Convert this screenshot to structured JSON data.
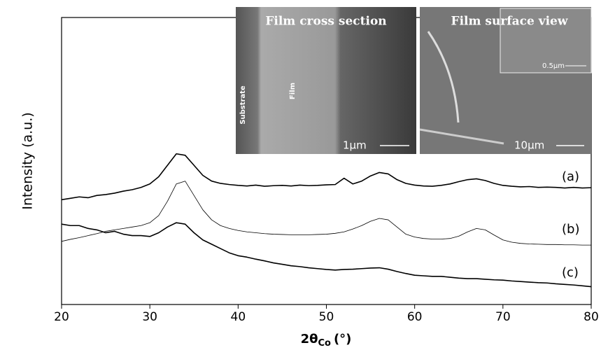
{
  "chart_data": {
    "type": "line",
    "xlabel": {
      "main": "2θ",
      "sub": "Co",
      "unit": "(°)"
    },
    "ylabel": "Intensity (a.u.)",
    "x": [
      20,
      21,
      22,
      23,
      24,
      25,
      26,
      27,
      28,
      29,
      30,
      31,
      32,
      33,
      34,
      35,
      36,
      37,
      38,
      39,
      40,
      41,
      42,
      43,
      44,
      45,
      46,
      47,
      48,
      49,
      50,
      51,
      52,
      53,
      54,
      55,
      56,
      57,
      58,
      59,
      60,
      61,
      62,
      63,
      64,
      65,
      66,
      67,
      68,
      69,
      70,
      71,
      72,
      73,
      74,
      75,
      76,
      77,
      78,
      79,
      80
    ],
    "series": [
      {
        "name": "(a)",
        "color": "#000000",
        "values": [
          36.5,
          37,
          37.5,
          37.2,
          38,
          38.3,
          38.8,
          39.5,
          40,
          40.8,
          42,
          44.5,
          48.5,
          52.5,
          52,
          48.5,
          45,
          43,
          42.2,
          41.8,
          41.5,
          41.3,
          41.6,
          41.2,
          41.4,
          41.5,
          41.3,
          41.6,
          41.4,
          41.5,
          41.7,
          41.8,
          44,
          42,
          43,
          44.8,
          46,
          45.5,
          43.5,
          42.2,
          41.6,
          41.3,
          41.2,
          41.5,
          42,
          42.8,
          43.5,
          43.8,
          43.2,
          42.2,
          41.5,
          41.2,
          41,
          41.1,
          40.8,
          40.9,
          40.8,
          40.6,
          40.8,
          40.6,
          40.7
        ]
      },
      {
        "name": "(b)",
        "color": "#000000",
        "values": [
          22,
          22.7,
          23.3,
          24,
          24.7,
          25.5,
          26,
          26.5,
          27,
          27.5,
          28.5,
          31,
          36,
          42,
          43,
          38,
          33,
          29.5,
          27.5,
          26.5,
          25.8,
          25.3,
          25,
          24.7,
          24.5,
          24.4,
          24.3,
          24.3,
          24.3,
          24.4,
          24.5,
          24.8,
          25.3,
          26.3,
          27.5,
          29,
          30,
          29.5,
          27,
          24.5,
          23.5,
          23,
          22.8,
          22.8,
          23,
          23.8,
          25.3,
          26.5,
          26,
          24.2,
          22.5,
          21.7,
          21.3,
          21.1,
          21,
          20.9,
          20.9,
          20.8,
          20.8,
          20.7,
          20.7
        ]
      },
      {
        "name": "(c)",
        "color": "#000000",
        "values": [
          28,
          27.5,
          27.5,
          26.5,
          26,
          25,
          25.5,
          24.5,
          24,
          24,
          23.7,
          25,
          27,
          28.5,
          28,
          25,
          22.5,
          21,
          19.5,
          18,
          17,
          16.5,
          15.8,
          15.2,
          14.5,
          14,
          13.5,
          13.2,
          12.8,
          12.5,
          12.2,
          12,
          12.2,
          12.3,
          12.5,
          12.7,
          12.8,
          12.3,
          11.5,
          10.8,
          10.2,
          10,
          9.8,
          9.8,
          9.5,
          9.2,
          9,
          9,
          8.8,
          8.6,
          8.5,
          8.2,
          8,
          7.8,
          7.6,
          7.5,
          7.2,
          7,
          6.8,
          6.5,
          6.2
        ]
      }
    ],
    "xlim": [
      20,
      80
    ],
    "xticks": [
      20,
      30,
      40,
      50,
      60,
      70,
      80
    ],
    "ylim": [
      0,
      100
    ],
    "insets": [
      {
        "title": "Film cross section",
        "labels": [
          "Substrate",
          "Film"
        ],
        "scale_bar": "1μm"
      },
      {
        "title": "Film surface view",
        "scale_bar": "10μm",
        "inner_scale_bar": "0.5μm"
      }
    ]
  }
}
